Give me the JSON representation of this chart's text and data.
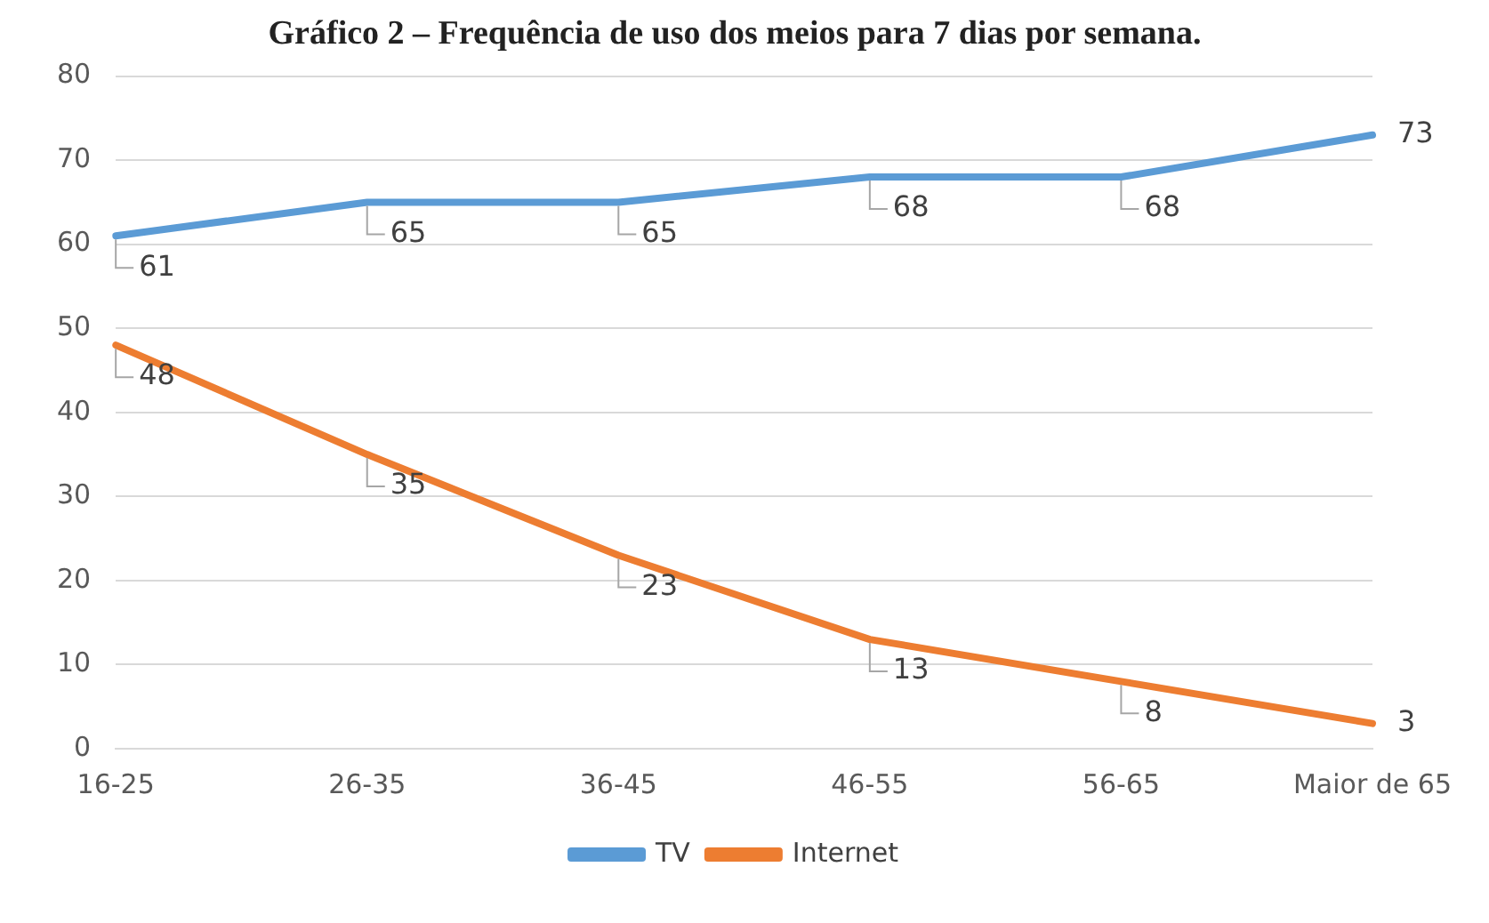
{
  "chart_data": {
    "type": "line",
    "title": "Gráfico 2 – Frequência de uso dos meios para 7 dias por semana.",
    "categories": [
      "16-25",
      "26-35",
      "36-45",
      "46-55",
      "56-65",
      "Maior de 65"
    ],
    "series": [
      {
        "name": "TV",
        "color": "#5b9bd5",
        "values": [
          61,
          65,
          65,
          68,
          68,
          73
        ]
      },
      {
        "name": "Internet",
        "color": "#ed7d31",
        "values": [
          48,
          35,
          23,
          13,
          8,
          3
        ]
      }
    ],
    "ylim": [
      0,
      80
    ],
    "yticks": [
      0,
      10,
      20,
      30,
      40,
      50,
      60,
      70,
      80
    ],
    "grid": "y",
    "legend": "bottom",
    "data_labels": true,
    "marker": "none",
    "line_style": "solid"
  }
}
